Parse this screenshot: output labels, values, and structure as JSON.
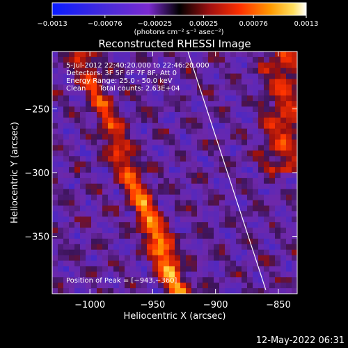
{
  "chart_data": {
    "type": "heatmap",
    "title": "Reconstructed RHESSI Image",
    "xlabel": "Heliocentric X (arcsec)",
    "ylabel": "Heliocentric Y (arcsec)",
    "xlim": [
      -1030,
      -835
    ],
    "ylim": [
      -395,
      -205
    ],
    "xticks": [
      -1000,
      -950,
      -900,
      -850
    ],
    "xtick_labels": [
      "−1000",
      "−950",
      "−900",
      "−850"
    ],
    "yticks": [
      -250,
      -300,
      -350
    ],
    "ytick_labels": [
      "−250",
      "−300",
      "−350"
    ],
    "colorbar": {
      "range": [
        -0.0013,
        0.0013
      ],
      "ticks": [
        -0.0013,
        -0.00076,
        -0.00025,
        0.00025,
        0.00076,
        0.0013
      ],
      "tick_labels": [
        "−0.0013",
        "−0.00076",
        "−0.00025",
        "0.00025",
        "0.00076",
        "0.0013"
      ],
      "unit_label": "(photons cm⁻² s⁻¹ asec⁻²)"
    },
    "info_lines": [
      "5-Jul-2012 22:40:20.000 to 22:46:20.000",
      "Detectors: 3F 5F 6F 7F 8F, Att 0",
      "Energy Range: 25.0 - 50.0 keV",
      "Clean      Total counts: 2.63E+04"
    ],
    "peak_label": "Position of Peak = [−943,−360]",
    "peak": [
      -943,
      -360
    ],
    "limb_line": [
      [
        -922,
        -205
      ],
      [
        -860,
        -392
      ]
    ],
    "colors": {
      "background": "#000000",
      "text": "#ffffff",
      "limb": "#ffffff"
    }
  },
  "footer": {
    "timestamp": "12-May-2022 06:31"
  }
}
